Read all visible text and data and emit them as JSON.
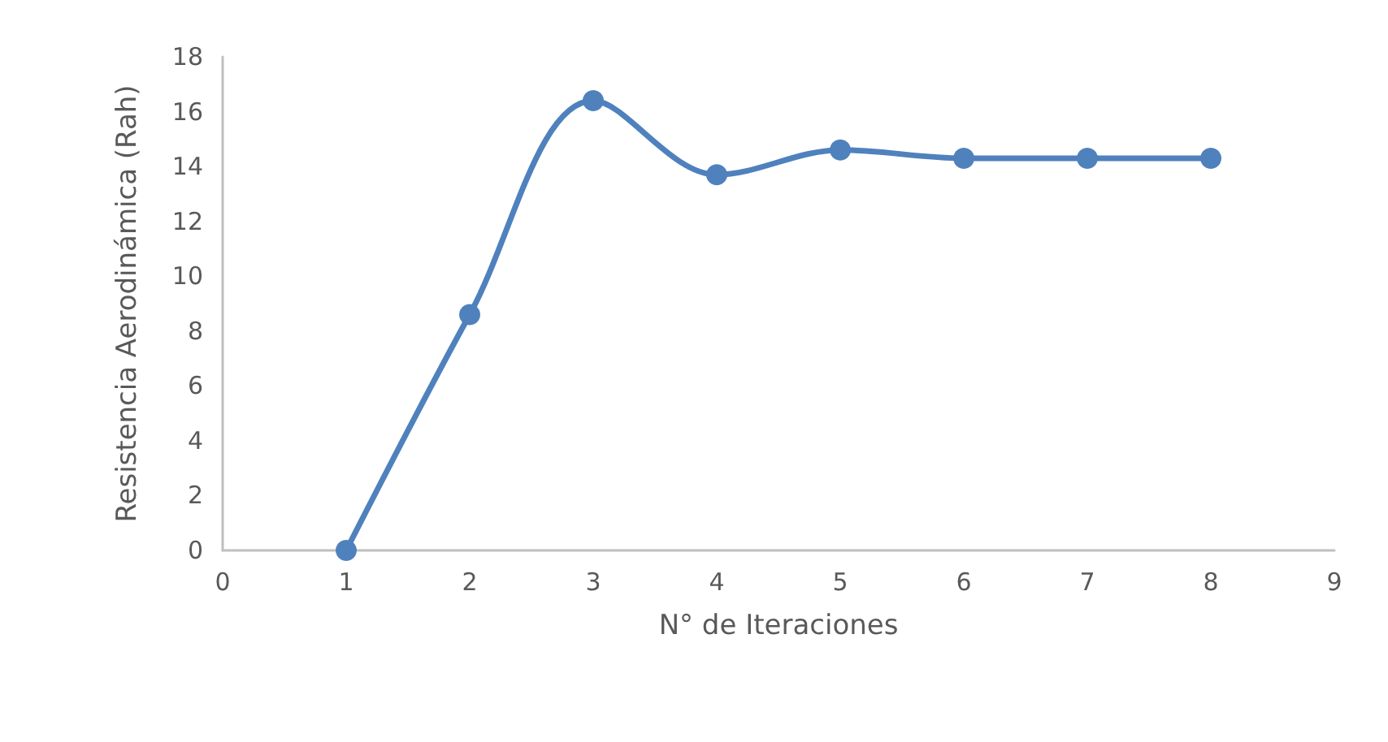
{
  "chart_data": {
    "type": "line",
    "xlabel": "N° de Iteraciones",
    "ylabel": "Resistencia Aerodinámica (Rah)",
    "x": [
      1,
      2,
      3,
      4,
      5,
      6,
      7,
      8
    ],
    "series": [
      {
        "color": "#4f81bd",
        "values": [
          0,
          8.6,
          16.4,
          13.7,
          14.6,
          14.3,
          14.3,
          14.3
        ]
      }
    ],
    "xlim": [
      0,
      9
    ],
    "xticks": [
      0,
      1,
      2,
      3,
      4,
      5,
      6,
      7,
      8,
      9
    ],
    "ylim": [
      0,
      18
    ],
    "yticks": [
      0,
      2,
      4,
      6,
      8,
      10,
      12,
      14,
      16,
      18
    ],
    "grid": false,
    "marker": "circle",
    "line_style": "solid"
  }
}
